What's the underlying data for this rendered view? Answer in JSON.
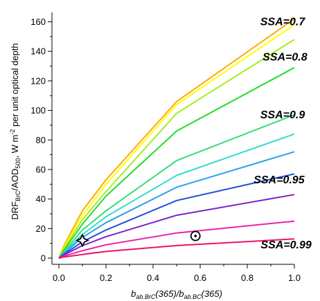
{
  "chart_data": {
    "type": "line",
    "xlabel": {
      "main": "b",
      "sub1": "ab.BrC",
      "mid": "(365)/b",
      "sub2": "ab.BC",
      "end": "(365)"
    },
    "ylabel": {
      "a": "DRF",
      "a_sub": "BrC",
      "b": "/AOD",
      "b_sub": "500",
      "c": ", W m",
      "c_sup": "-2",
      "d": " per unit optical depth"
    },
    "xlim": [
      0.0,
      1.0
    ],
    "ylim": [
      -4,
      164
    ],
    "xticks": [
      "0.0",
      "0.2",
      "0.4",
      "0.6",
      "0.8",
      "1.0"
    ],
    "yticks": [
      "0",
      "20",
      "40",
      "60",
      "80",
      "100",
      "120",
      "140",
      "160"
    ],
    "x": [
      0.0,
      0.02,
      0.1,
      0.2,
      0.5,
      1.0
    ],
    "series": [
      {
        "color": "#ffaa00",
        "values": [
          0,
          8,
          32,
          53,
          106,
          162
        ]
      },
      {
        "color": "#ffff00",
        "values": [
          0,
          7,
          29,
          50,
          104,
          158
        ]
      },
      {
        "color": "#a6ee1d",
        "values": [
          0,
          6,
          26,
          45,
          98,
          148
        ]
      },
      {
        "color": "#22dd22",
        "values": [
          0,
          5,
          23,
          42,
          86,
          129
        ]
      },
      {
        "color": "#33dd77",
        "values": [
          0,
          4,
          19,
          32,
          66,
          97
        ]
      },
      {
        "color": "#33ddcc",
        "values": [
          0,
          3.5,
          16,
          28,
          56,
          84
        ]
      },
      {
        "color": "#2b9fea",
        "values": [
          0,
          3,
          14,
          24,
          48,
          72
        ]
      },
      {
        "color": "#1f4fd6",
        "values": [
          0,
          2.5,
          11,
          19,
          39,
          57
        ]
      },
      {
        "color": "#7a22cc",
        "values": [
          0,
          2,
          8.5,
          14.5,
          29,
          43
        ]
      },
      {
        "color": "#ee1fa8",
        "values": [
          0,
          1.3,
          5,
          9,
          17,
          25
        ]
      },
      {
        "color": "#ee1070",
        "values": [
          0,
          0.7,
          2.5,
          4.5,
          8.5,
          13
        ]
      }
    ],
    "ssa_labels": [
      {
        "text": "SSA=0.7",
        "x": 0.95,
        "y": 160
      },
      {
        "text": "SSA=0.8",
        "x": 0.96,
        "y": 136
      },
      {
        "text": "SSA=0.9",
        "x": 0.95,
        "y": 97
      },
      {
        "text": "SSA=0.95",
        "x": 0.935,
        "y": 53
      },
      {
        "text": "SSA=0.99",
        "x": 0.965,
        "y": 9
      }
    ],
    "markers": [
      {
        "kind": "four-point-star",
        "x": 0.1,
        "y": 12
      },
      {
        "kind": "circled-dot",
        "x": 0.58,
        "y": 15
      }
    ],
    "grid": false,
    "legend": "none"
  }
}
